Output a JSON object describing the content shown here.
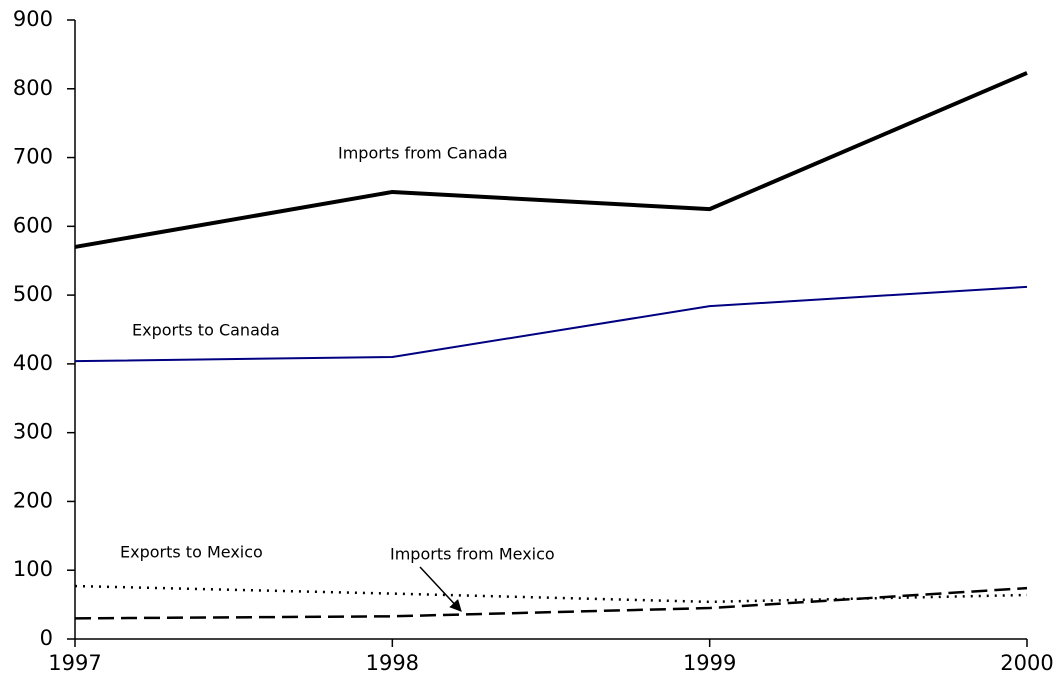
{
  "chart_data": {
    "type": "line",
    "x": [
      1997,
      1998,
      1999,
      2000
    ],
    "xlim": [
      1997,
      2000
    ],
    "xticks": [
      1997,
      1998,
      1999,
      2000
    ],
    "ylim": [
      0,
      900
    ],
    "yticks": [
      0,
      100,
      200,
      300,
      400,
      500,
      600,
      700,
      800,
      900
    ],
    "grid": false,
    "series": [
      {
        "name": "Imports from Canada",
        "color": "#000000",
        "style": "solid",
        "values": [
          570,
          650,
          625,
          823
        ]
      },
      {
        "name": "Exports to Canada",
        "color": "#000080",
        "style": "solid",
        "values": [
          404,
          410,
          484,
          512
        ]
      },
      {
        "name": "Exports to Mexico",
        "color": "#000000",
        "style": "dotted",
        "values": [
          77,
          66,
          54,
          64
        ]
      },
      {
        "name": "Imports from Mexico",
        "color": "#000000",
        "style": "dashed",
        "values": [
          30,
          33,
          45,
          74
        ]
      }
    ]
  }
}
